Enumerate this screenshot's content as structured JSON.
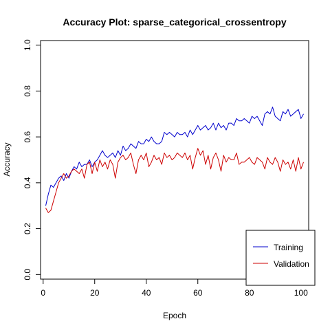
{
  "chart_data": {
    "type": "line",
    "title": "Accuracy Plot: sparse_categorical_crossentropy",
    "xlabel": "Epoch",
    "ylabel": "Accuracy",
    "xlim": [
      -1,
      103
    ],
    "ylim": [
      -0.02,
      1.02
    ],
    "x_ticks": [
      0,
      20,
      40,
      60,
      80,
      100
    ],
    "y_ticks": [
      0.0,
      0.2,
      0.4,
      0.6,
      0.8,
      1.0
    ],
    "y_tick_labels": [
      "0.0",
      "0.2",
      "0.4",
      "0.6",
      "0.8",
      "1.0"
    ],
    "grid": false,
    "legend_position": "bottom-right",
    "series": [
      {
        "name": "Training",
        "color": "#0000cd",
        "values": [
          0.3,
          0.35,
          0.39,
          0.38,
          0.4,
          0.42,
          0.43,
          0.41,
          0.44,
          0.42,
          0.45,
          0.47,
          0.46,
          0.49,
          0.47,
          0.48,
          0.48,
          0.5,
          0.47,
          0.49,
          0.5,
          0.52,
          0.54,
          0.52,
          0.51,
          0.52,
          0.53,
          0.51,
          0.54,
          0.52,
          0.56,
          0.54,
          0.55,
          0.57,
          0.56,
          0.55,
          0.58,
          0.57,
          0.57,
          0.59,
          0.58,
          0.6,
          0.58,
          0.57,
          0.57,
          0.58,
          0.62,
          0.61,
          0.62,
          0.61,
          0.6,
          0.62,
          0.61,
          0.61,
          0.62,
          0.6,
          0.63,
          0.61,
          0.63,
          0.65,
          0.63,
          0.64,
          0.65,
          0.63,
          0.64,
          0.66,
          0.63,
          0.66,
          0.64,
          0.65,
          0.63,
          0.66,
          0.66,
          0.65,
          0.68,
          0.67,
          0.67,
          0.68,
          0.67,
          0.66,
          0.69,
          0.68,
          0.69,
          0.67,
          0.65,
          0.7,
          0.71,
          0.7,
          0.73,
          0.69,
          0.68,
          0.67,
          0.71,
          0.7,
          0.72,
          0.69,
          0.7,
          0.71,
          0.72,
          0.68,
          0.7
        ]
      },
      {
        "name": "Validation",
        "color": "#cd0000",
        "values": [
          0.29,
          0.27,
          0.28,
          0.32,
          0.36,
          0.4,
          0.42,
          0.44,
          0.42,
          0.43,
          0.45,
          0.46,
          0.45,
          0.44,
          0.46,
          0.42,
          0.48,
          0.49,
          0.44,
          0.49,
          0.45,
          0.5,
          0.47,
          0.49,
          0.46,
          0.5,
          0.48,
          0.42,
          0.49,
          0.51,
          0.52,
          0.5,
          0.51,
          0.53,
          0.48,
          0.44,
          0.5,
          0.52,
          0.5,
          0.53,
          0.47,
          0.49,
          0.52,
          0.5,
          0.51,
          0.48,
          0.53,
          0.51,
          0.52,
          0.5,
          0.51,
          0.53,
          0.52,
          0.51,
          0.53,
          0.5,
          0.52,
          0.46,
          0.51,
          0.55,
          0.52,
          0.54,
          0.48,
          0.52,
          0.46,
          0.51,
          0.53,
          0.5,
          0.45,
          0.52,
          0.49,
          0.51,
          0.5,
          0.5,
          0.53,
          0.48,
          0.49,
          0.49,
          0.5,
          0.51,
          0.49,
          0.48,
          0.51,
          0.5,
          0.49,
          0.46,
          0.51,
          0.49,
          0.48,
          0.51,
          0.49,
          0.45,
          0.5,
          0.48,
          0.49,
          0.46,
          0.5,
          0.45,
          0.51,
          0.46,
          0.49
        ]
      }
    ]
  }
}
